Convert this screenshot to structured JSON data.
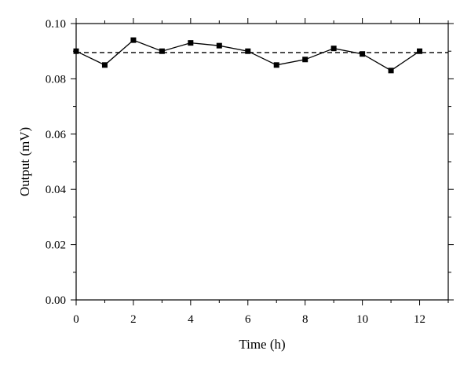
{
  "chart_data": {
    "type": "line",
    "xlabel": "Time (h)",
    "ylabel": "Output (mV)",
    "xlim": [
      0,
      13
    ],
    "ylim": [
      0,
      0.1
    ],
    "x_ticks": [
      0,
      2,
      4,
      6,
      8,
      10,
      12
    ],
    "x_tick_labels": [
      "0",
      "2",
      "4",
      "6",
      "8",
      "10",
      "12"
    ],
    "y_ticks": [
      0,
      0.02,
      0.04,
      0.06,
      0.08,
      0.1
    ],
    "y_tick_labels": [
      "0.00",
      "0.02",
      "0.04",
      "0.06",
      "0.08",
      "0.10"
    ],
    "grid": false,
    "series": [
      {
        "x": [
          0,
          1,
          2,
          3,
          4,
          5,
          6,
          7,
          8,
          9,
          10,
          11,
          12
        ],
        "y": [
          0.09,
          0.085,
          0.094,
          0.09,
          0.093,
          0.092,
          0.09,
          0.085,
          0.087,
          0.091,
          0.089,
          0.083,
          0.09
        ],
        "marker": "square",
        "color": "#000000"
      }
    ],
    "reference_line": {
      "y": 0.0895,
      "style": "dashed",
      "color": "#000000"
    }
  }
}
